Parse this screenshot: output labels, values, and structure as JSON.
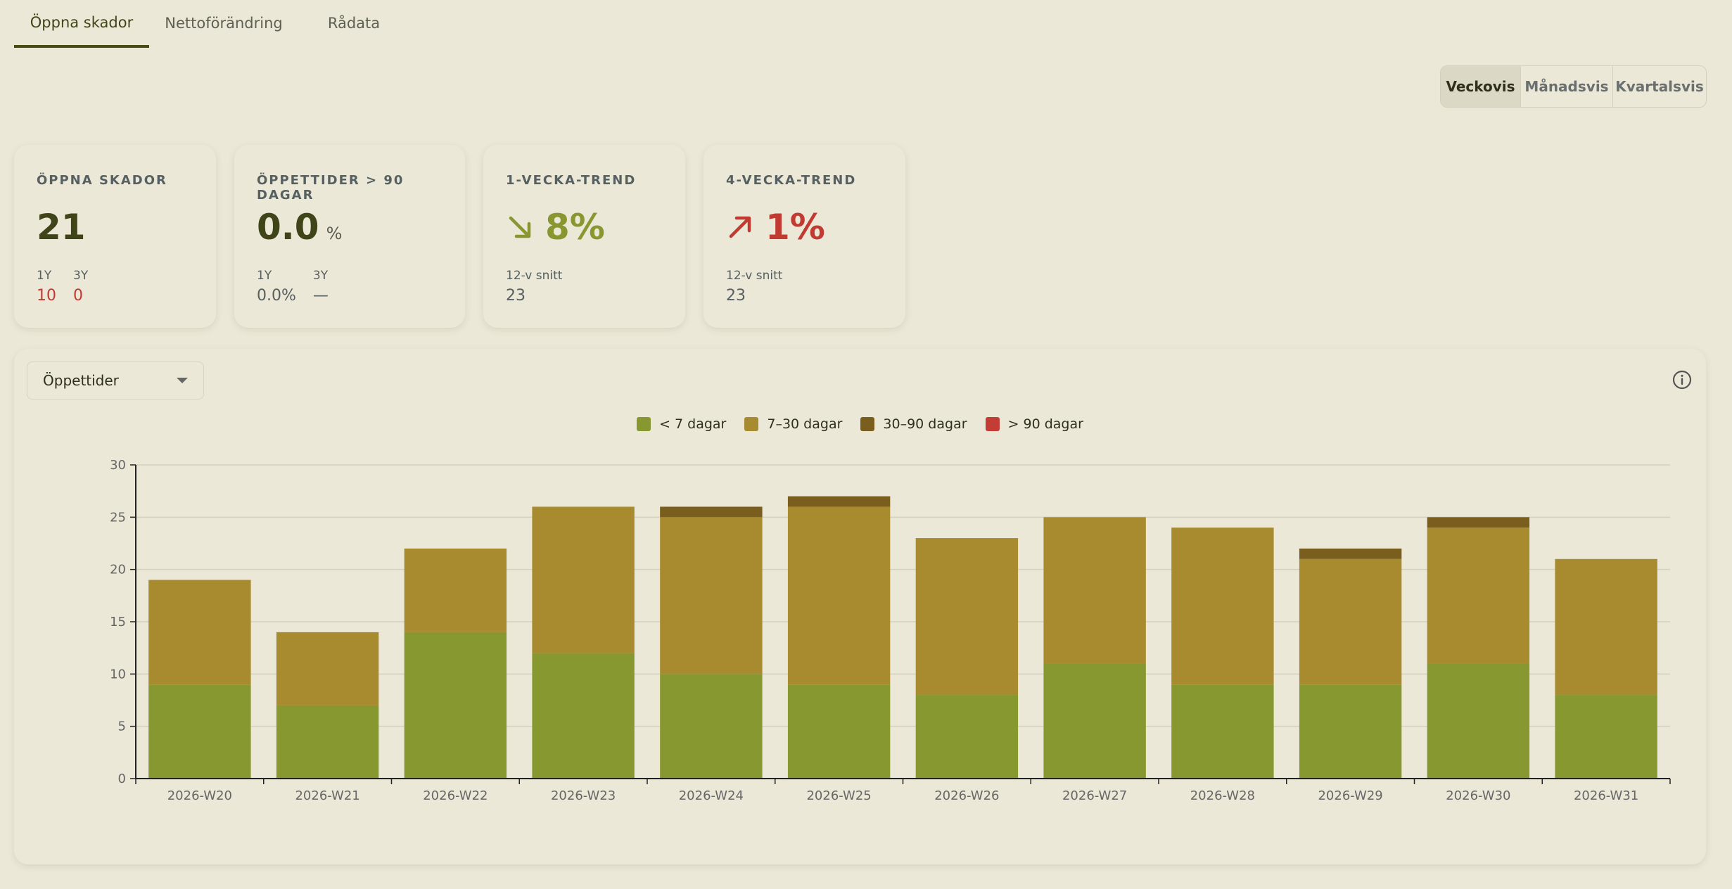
{
  "tabs": [
    {
      "label": "Öppna skador",
      "active": true
    },
    {
      "label": "Nettoförändring",
      "active": false
    },
    {
      "label": "Rådata",
      "active": false
    }
  ],
  "period": {
    "options": [
      "Veckovis",
      "Månadsvis",
      "Kvartalsvis"
    ],
    "selected": "Veckovis"
  },
  "cards": {
    "open": {
      "label": "ÖPPNA SKADOR",
      "value": "21",
      "sub_labels": [
        "1Y",
        "3Y"
      ],
      "sub_values": [
        "10",
        "0"
      ]
    },
    "opentimes": {
      "label": "ÖPPETTIDER > 90 DAGAR",
      "value": "0.0",
      "unit": "%",
      "sub_labels": [
        "1Y",
        "3Y"
      ],
      "sub_values": [
        "0.0%",
        "—"
      ]
    },
    "trend1": {
      "label": "1-VECKA-TREND",
      "icon": "arrow-down-right-icon",
      "value": "8%",
      "avg_label": "12-v snitt",
      "avg_value": "23"
    },
    "trend4": {
      "label": "4-VECKA-TREND",
      "icon": "arrow-up-right-icon",
      "value": "1%",
      "avg_label": "12-v snitt",
      "avg_value": "23"
    }
  },
  "panel": {
    "select_value": "Öppettider",
    "info_icon": "info-icon"
  },
  "colors": {
    "lt7": "#889830",
    "d7_30": "#a88a2f",
    "d30_90": "#7a5e1d",
    "gt90": "#c43d34",
    "accent": "#4a4d12"
  },
  "chart_data": {
    "type": "bar",
    "stacked": true,
    "categories": [
      "2026-W20",
      "2026-W21",
      "2026-W22",
      "2026-W23",
      "2026-W24",
      "2026-W25",
      "2026-W26",
      "2026-W27",
      "2026-W28",
      "2026-W29",
      "2026-W30",
      "2026-W31"
    ],
    "series": [
      {
        "name": "< 7 dagar",
        "color": "#889830",
        "values": [
          9,
          7,
          14,
          12,
          10,
          9,
          8,
          11,
          9,
          9,
          11,
          8
        ]
      },
      {
        "name": "7–30 dagar",
        "color": "#a88a2f",
        "values": [
          10,
          7,
          8,
          14,
          15,
          17,
          15,
          14,
          15,
          12,
          13,
          13
        ]
      },
      {
        "name": "30–90 dagar",
        "color": "#7a5e1d",
        "values": [
          0,
          0,
          0,
          0,
          1,
          1,
          0,
          0,
          0,
          1,
          1,
          0
        ]
      },
      {
        "name": "> 90 dagar",
        "color": "#c43d34",
        "values": [
          0,
          0,
          0,
          0,
          0,
          0,
          0,
          0,
          0,
          0,
          0,
          0
        ]
      }
    ],
    "ylim": [
      0,
      30
    ],
    "yticks": [
      0,
      5,
      10,
      15,
      20,
      25,
      30
    ],
    "grid": true,
    "legend": "top-center"
  }
}
